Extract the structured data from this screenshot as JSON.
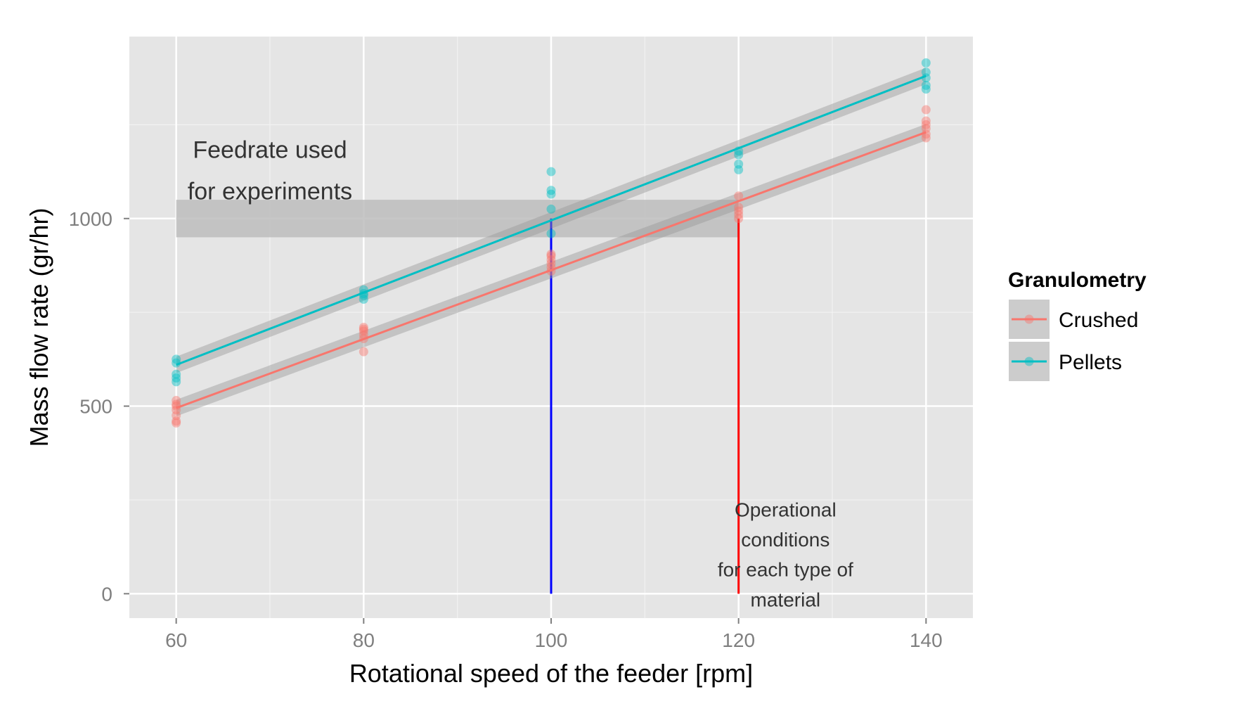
{
  "chart_data": {
    "type": "scatter",
    "xlabel": "Rotational speed of the feeder [rpm]",
    "ylabel": "Mass flow rate (gr/hr)",
    "xlim": [
      55,
      145
    ],
    "ylim": [
      -65,
      1485
    ],
    "x_ticks": [
      60,
      80,
      100,
      120,
      140
    ],
    "x_tick_labels": [
      "60",
      "80",
      "100",
      "120",
      "140"
    ],
    "x_minor_ticks": [
      70,
      90,
      110,
      130
    ],
    "y_ticks": [
      0,
      500,
      1000
    ],
    "y_tick_labels": [
      "0",
      "500",
      "1000"
    ],
    "y_minor_ticks": [
      250,
      750,
      1250
    ],
    "grid": true,
    "background_color": "#e5e5e5",
    "legend": {
      "title": "Granulometry",
      "position": "right",
      "entries": [
        "Crushed",
        "Pellets"
      ]
    },
    "series": [
      {
        "name": "Crushed",
        "color": "#f8766d",
        "points": [
          [
            60,
            455
          ],
          [
            60,
            460
          ],
          [
            60,
            475
          ],
          [
            60,
            490
          ],
          [
            60,
            500
          ],
          [
            60,
            505
          ],
          [
            60,
            515
          ],
          [
            80,
            645
          ],
          [
            80,
            680
          ],
          [
            80,
            690
          ],
          [
            80,
            700
          ],
          [
            80,
            705
          ],
          [
            80,
            710
          ],
          [
            100,
            860
          ],
          [
            100,
            870
          ],
          [
            100,
            880
          ],
          [
            100,
            890
          ],
          [
            100,
            900
          ],
          [
            100,
            905
          ],
          [
            120,
            1000
          ],
          [
            120,
            1010
          ],
          [
            120,
            1020
          ],
          [
            120,
            1030
          ],
          [
            120,
            1060
          ],
          [
            140,
            1215
          ],
          [
            140,
            1225
          ],
          [
            140,
            1240
          ],
          [
            140,
            1250
          ],
          [
            140,
            1260
          ],
          [
            140,
            1290
          ]
        ],
        "fit_line": [
          [
            60,
            495
          ],
          [
            140,
            1230
          ]
        ]
      },
      {
        "name": "Pellets",
        "color": "#00bfc4",
        "points": [
          [
            60,
            565
          ],
          [
            60,
            575
          ],
          [
            60,
            585
          ],
          [
            60,
            615
          ],
          [
            60,
            625
          ],
          [
            80,
            785
          ],
          [
            80,
            795
          ],
          [
            80,
            800
          ],
          [
            80,
            810
          ],
          [
            100,
            960
          ],
          [
            100,
            1025
          ],
          [
            100,
            1065
          ],
          [
            100,
            1075
          ],
          [
            100,
            1125
          ],
          [
            120,
            1130
          ],
          [
            120,
            1145
          ],
          [
            120,
            1170
          ],
          [
            120,
            1180
          ],
          [
            140,
            1345
          ],
          [
            140,
            1355
          ],
          [
            140,
            1375
          ],
          [
            140,
            1390
          ],
          [
            140,
            1415
          ]
        ],
        "fit_line": [
          [
            60,
            610
          ],
          [
            140,
            1380
          ]
        ]
      }
    ],
    "band": {
      "x": [
        60,
        120
      ],
      "y": [
        950,
        1050
      ],
      "color": "#bdbdbd"
    },
    "vertical_lines": [
      {
        "x": 100,
        "y": [
          0,
          1000
        ],
        "color": "#0000ff"
      },
      {
        "x": 120,
        "y": [
          0,
          1000
        ],
        "color": "#ff0000"
      }
    ],
    "annotations": [
      {
        "lines": [
          "Feedrate used",
          "for experiments"
        ],
        "x": 70,
        "y": [
          1180,
          1070
        ]
      },
      {
        "lines": [
          "Operational",
          "conditions",
          "for each type of",
          "material"
        ],
        "x": 125,
        "y": [
          225,
          145,
          65,
          -15
        ]
      }
    ]
  }
}
